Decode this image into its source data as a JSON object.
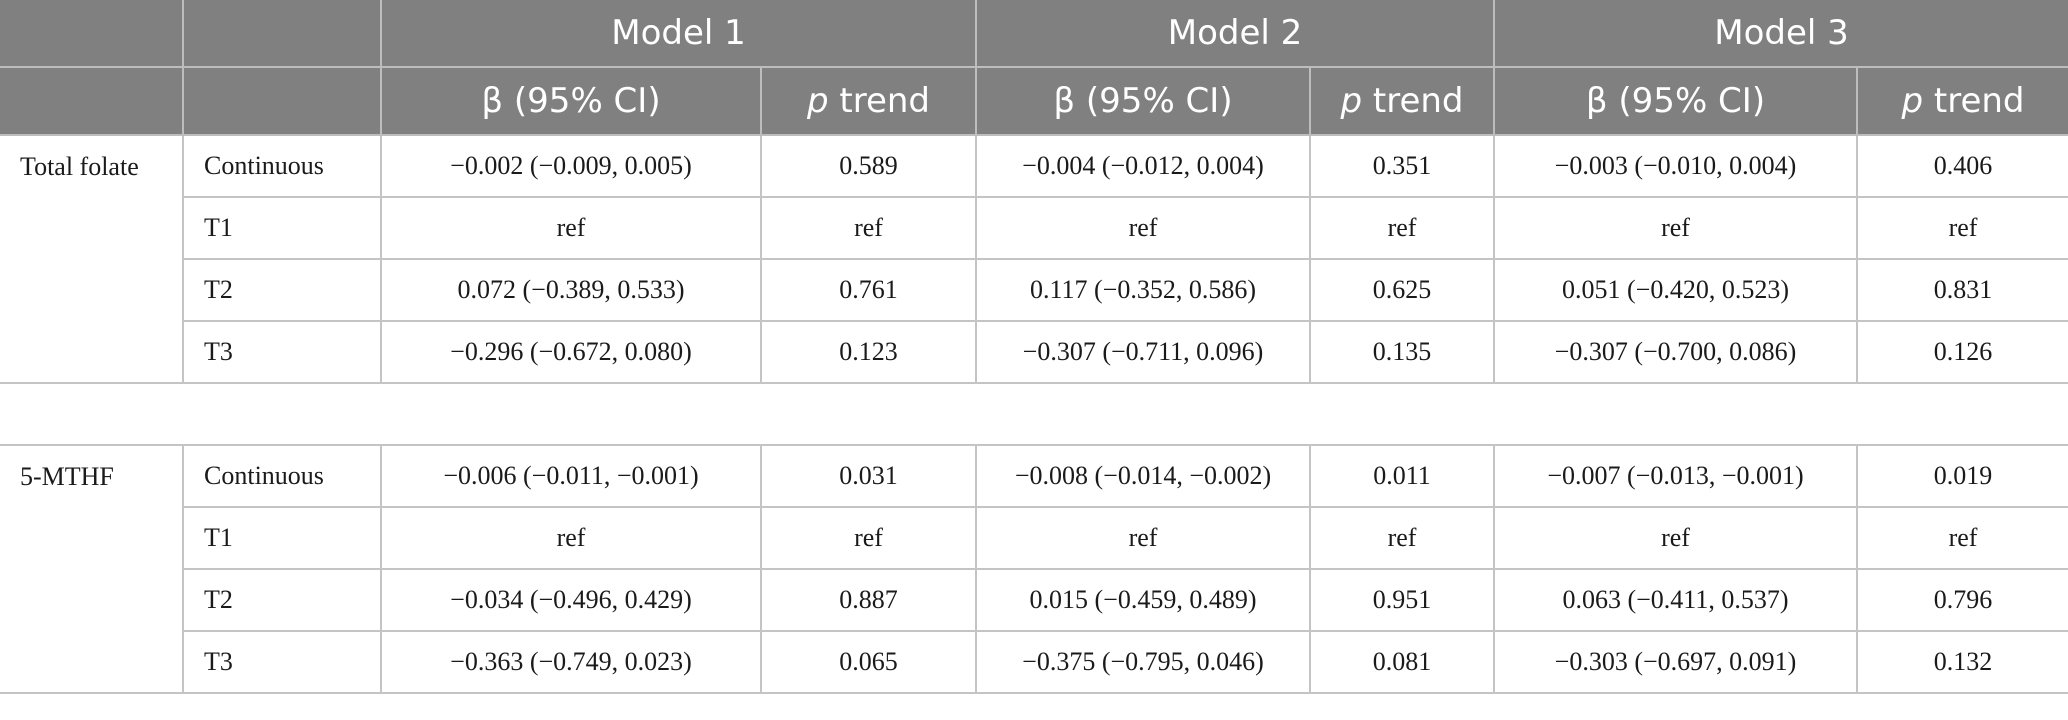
{
  "header": {
    "models": [
      "Model 1",
      "Model 2",
      "Model 3"
    ],
    "beta_label": "β (95% CI)",
    "p_label_italic": "p",
    "p_label_rest": " trend"
  },
  "groups": [
    {
      "name": "Total folate",
      "rows": [
        {
          "label": "Continuous",
          "cells": [
            "−0.002 (−0.009, 0.005)",
            "0.589",
            "−0.004 (−0.012, 0.004)",
            "0.351",
            "−0.003 (−0.010, 0.004)",
            "0.406"
          ]
        },
        {
          "label": "T1",
          "cells": [
            "ref",
            "ref",
            "ref",
            "ref",
            "ref",
            "ref"
          ]
        },
        {
          "label": "T2",
          "cells": [
            "0.072 (−0.389, 0.533)",
            "0.761",
            "0.117 (−0.352, 0.586)",
            "0.625",
            "0.051 (−0.420, 0.523)",
            "0.831"
          ]
        },
        {
          "label": "T3",
          "cells": [
            "−0.296 (−0.672, 0.080)",
            "0.123",
            "−0.307 (−0.711, 0.096)",
            "0.135",
            "−0.307 (−0.700, 0.086)",
            "0.126"
          ]
        }
      ]
    },
    {
      "name": "5-MTHF",
      "rows": [
        {
          "label": "Continuous",
          "cells": [
            "−0.006 (−0.011, −0.001)",
            "0.031",
            "−0.008 (−0.014, −0.002)",
            "0.011",
            "−0.007 (−0.013, −0.001)",
            "0.019"
          ]
        },
        {
          "label": "T1",
          "cells": [
            "ref",
            "ref",
            "ref",
            "ref",
            "ref",
            "ref"
          ]
        },
        {
          "label": "T2",
          "cells": [
            "−0.034 (−0.496, 0.429)",
            "0.887",
            "0.015 (−0.459, 0.489)",
            "0.951",
            "0.063 (−0.411, 0.537)",
            "0.796"
          ]
        },
        {
          "label": "T3",
          "cells": [
            "−0.363 (−0.749, 0.023)",
            "0.065",
            "−0.375 (−0.795, 0.046)",
            "0.081",
            "−0.303 (−0.697, 0.091)",
            "0.132"
          ]
        }
      ]
    }
  ]
}
